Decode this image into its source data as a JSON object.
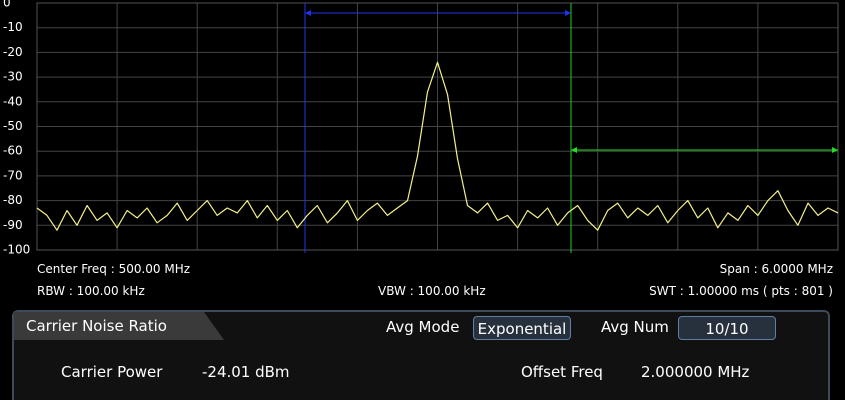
{
  "chart_data": {
    "type": "line",
    "color": "#f4f08a",
    "grid": true,
    "ylim": [
      -100,
      0
    ],
    "yticks": [
      0,
      -10,
      -20,
      -30,
      -40,
      -50,
      -60,
      -70,
      -80,
      -90,
      -100
    ],
    "categories": [
      null,
      null,
      null,
      null,
      null,
      null,
      null,
      null,
      null,
      null,
      null,
      null,
      null,
      null,
      null,
      null,
      null,
      null,
      null,
      null,
      null,
      null,
      null,
      null,
      null,
      null,
      null,
      null,
      null,
      null,
      null,
      null,
      null,
      null,
      null,
      null,
      null,
      null,
      null,
      null,
      null,
      null,
      null,
      null,
      null,
      null,
      null,
      null,
      null,
      null,
      null,
      null,
      null,
      null,
      null,
      null,
      null,
      null,
      null,
      null,
      null,
      null,
      null,
      null,
      null,
      null,
      null,
      null,
      null,
      null,
      null,
      null,
      null,
      null,
      null,
      null,
      null,
      null,
      null,
      null,
      null
    ],
    "values": [
      -83,
      -86,
      -92,
      -84,
      -90,
      -82,
      -88,
      -85,
      -91,
      -84,
      -87,
      -83,
      -89,
      -86,
      -81,
      -88,
      -84,
      -80,
      -86,
      -83,
      -85,
      -80,
      -87,
      -82,
      -88,
      -84,
      -91,
      -86,
      -82,
      -89,
      -85,
      -80,
      -88,
      -84,
      -81,
      -86,
      -83,
      -80,
      -62,
      -36,
      -24,
      -37,
      -63,
      -82,
      -85,
      -81,
      -88,
      -86,
      -91,
      -84,
      -87,
      -83,
      -90,
      -85,
      -82,
      -88,
      -92,
      -84,
      -81,
      -87,
      -83,
      -86,
      -82,
      -89,
      -84,
      -80,
      -87,
      -83,
      -91,
      -85,
      -88,
      -82,
      -86,
      -80,
      -76,
      -84,
      -90,
      -81,
      -86,
      -83,
      -85
    ]
  },
  "status": {
    "center_freq": "Center Freq : 500.00 MHz",
    "span": "Span : 6.0000 MHz",
    "rbw": "RBW : 100.00 kHz",
    "vbw": "VBW : 100.00 kHz",
    "swt": "SWT : 1.00000 ms ( pts : 801 )"
  },
  "panel": {
    "tab": "Carrier Noise Ratio",
    "avg_mode_label": "Avg Mode",
    "avg_mode": "Exponential",
    "avg_num_label": "Avg Num",
    "avg_num": "10/10",
    "carrier_power_label": "Carrier Power",
    "carrier_power": "-24.01 dBm",
    "offset_freq_label": "Offset Freq",
    "offset_freq": "2.000000 MHz"
  }
}
